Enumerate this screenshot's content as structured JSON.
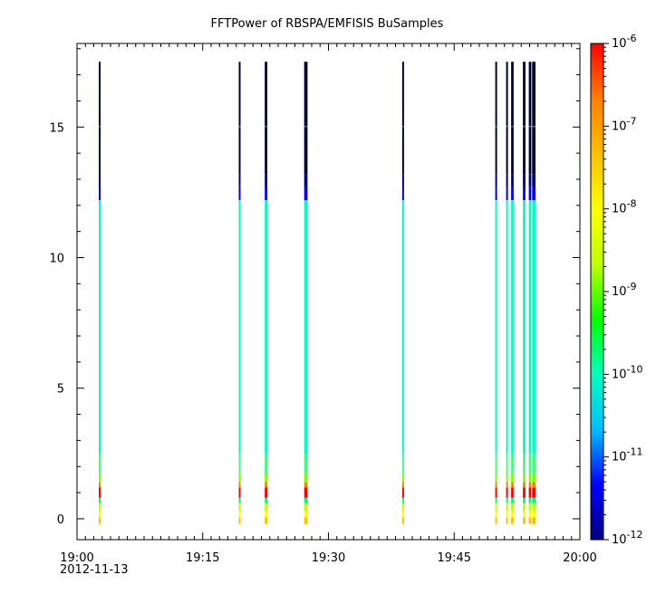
{
  "chart_data": {
    "type": "heatmap",
    "title": "FFTPower of RBSPA/EMFISIS  BuSamples",
    "xlabel": "",
    "ylabel": "",
    "x_start_label": "19:00",
    "x_date_label": "2012-11-13",
    "x_range_minutes": [
      0,
      60
    ],
    "x_tick_labels": [
      {
        "minute": 0,
        "label": "19:00"
      },
      {
        "minute": 15,
        "label": "19:15"
      },
      {
        "minute": 30,
        "label": "19:30"
      },
      {
        "minute": 45,
        "label": "19:45"
      },
      {
        "minute": 60,
        "label": "20:00"
      }
    ],
    "ylim": [
      -0.8,
      18.2
    ],
    "y_ticks": [
      0,
      5,
      10,
      15
    ],
    "y_tick_labels": [
      "0",
      "5",
      "10",
      "15"
    ],
    "colorbar": {
      "scale": "log",
      "range": [
        1e-12,
        1e-06
      ],
      "tick_labels": [
        {
          "base": "10",
          "exp": "-6"
        },
        {
          "base": "10",
          "exp": "-7"
        },
        {
          "base": "10",
          "exp": "-8"
        },
        {
          "base": "10",
          "exp": "-9"
        },
        {
          "base": "10",
          "exp": "-10"
        },
        {
          "base": "10",
          "exp": "-11"
        },
        {
          "base": "10",
          "exp": "-12"
        }
      ],
      "colors": [
        "#00007f",
        "#0000ff",
        "#00bfff",
        "#00ffbf",
        "#00ff00",
        "#bfff00",
        "#ffff00",
        "#ffbf00",
        "#ff7f00",
        "#ff0000"
      ]
    },
    "bursts": [
      {
        "minute": 2.6,
        "width_min": 0.2,
        "dense": false
      },
      {
        "minute": 19.3,
        "width_min": 0.2,
        "dense": false
      },
      {
        "minute": 22.4,
        "width_min": 0.3,
        "dense": true
      },
      {
        "minute": 27.1,
        "width_min": 0.4,
        "dense": true
      },
      {
        "minute": 38.8,
        "width_min": 0.2,
        "dense": false
      },
      {
        "minute": 49.9,
        "width_min": 0.2,
        "dense": false
      },
      {
        "minute": 51.2,
        "width_min": 0.2,
        "dense": false
      },
      {
        "minute": 51.8,
        "width_min": 0.3,
        "dense": true
      },
      {
        "minute": 53.2,
        "width_min": 0.3,
        "dense": true
      },
      {
        "minute": 53.9,
        "width_min": 0.3,
        "dense": true
      },
      {
        "minute": 54.3,
        "width_min": 0.4,
        "dense": true
      }
    ],
    "freq_profile": [
      {
        "y0": -0.2,
        "y1": 0.05,
        "color": "#ffbf00"
      },
      {
        "y0": 0.05,
        "y1": 0.3,
        "color": "#ffff00"
      },
      {
        "y0": 0.3,
        "y1": 0.6,
        "color": "#bfff00"
      },
      {
        "y0": 0.6,
        "y1": 0.8,
        "color": "#00ff7f"
      },
      {
        "y0": 0.8,
        "y1": 1.2,
        "color": "#ff0000"
      },
      {
        "y0": 1.2,
        "y1": 1.4,
        "color": "#ff7f00"
      },
      {
        "y0": 1.4,
        "y1": 1.7,
        "color": "#7fff00"
      },
      {
        "y0": 1.7,
        "y1": 2.5,
        "color": "#3fff7f"
      },
      {
        "y0": 2.5,
        "y1": 12.2,
        "color": "#00ffbf"
      },
      {
        "y0": 12.2,
        "y1": 12.7,
        "color": "#0000ff"
      },
      {
        "y0": 12.7,
        "y1": 13.2,
        "color": "#00007f"
      },
      {
        "y0": 13.2,
        "y1": 17.5,
        "color": "#000033"
      }
    ]
  }
}
